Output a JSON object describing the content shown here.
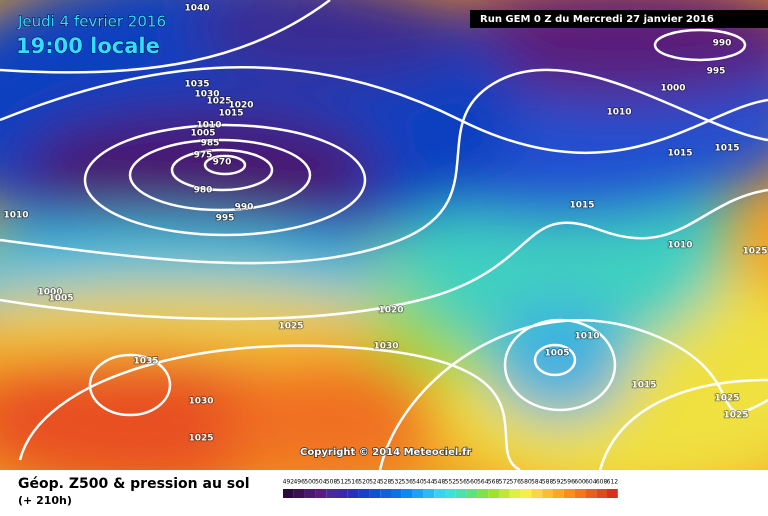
{
  "header": {
    "date": "Jeudi 4 fevrier 2016",
    "time": "19:00 locale",
    "run": "Run GEM 0 Z du Mercredi 27 janvier 2016"
  },
  "copyright": "Copyright © 2014 Meteociel.fr",
  "footer": {
    "title": "Géop. Z500 & pression au sol",
    "lead": "(+ 210h)"
  },
  "scale": [
    492,
    496,
    500,
    504,
    508,
    512,
    516,
    520,
    524,
    528,
    532,
    536,
    540,
    544,
    548,
    552,
    556,
    560,
    564,
    568,
    572,
    576,
    580,
    584,
    588,
    592,
    596,
    600,
    604,
    608,
    612
  ],
  "isobar_labels": [
    1040,
    990,
    995,
    1000,
    1010,
    1015,
    1015,
    1035,
    1030,
    1025,
    1020,
    1015,
    1010,
    1005,
    985,
    975,
    970,
    980,
    990,
    995,
    1010,
    1015,
    1010,
    1025,
    1000,
    1005,
    1025,
    1020,
    1030,
    1010,
    1005,
    1035,
    1015,
    1025,
    1025,
    1030,
    1025
  ]
}
